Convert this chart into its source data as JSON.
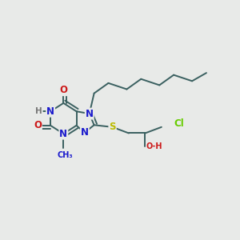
{
  "fig_bg": "#e8eae8",
  "bond_color": "#3a6060",
  "N_color": "#1a1acc",
  "O_color": "#cc1a1a",
  "S_color": "#bbbb00",
  "Cl_color": "#66cc00",
  "H_color": "#777777",
  "lw": 1.4,
  "xlim": [
    0.0,
    3.0
  ],
  "ylim": [
    0.0,
    3.0
  ]
}
